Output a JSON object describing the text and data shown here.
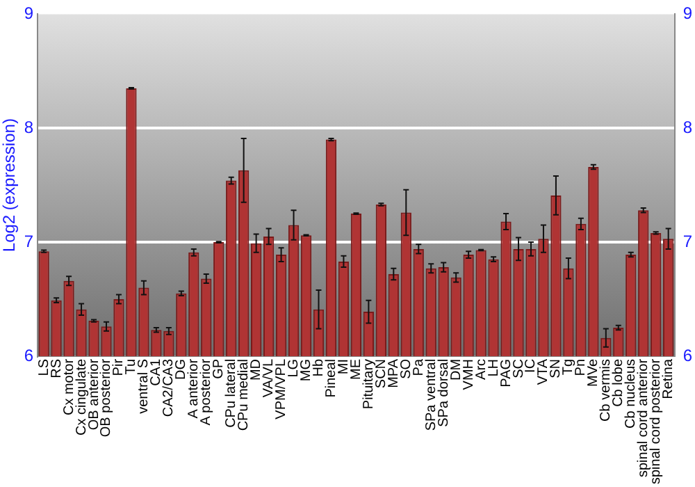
{
  "chart_data": {
    "type": "bar",
    "ylabel": "Log2 (expression)",
    "categories": [
      "LS",
      "RS",
      "Cx motor",
      "Cx cingulate",
      "OB anterior",
      "OB posterior",
      "Pir",
      "Tu",
      "ventral S",
      "CA1",
      "CA2/CA3",
      "DG",
      "A anterior",
      "A posterior",
      "GP",
      "CPu lateral",
      "CPu medial",
      "MD",
      "VA/VL",
      "VPM/VPL",
      "LG",
      "MG",
      "Hb",
      "Pineal",
      "MI",
      "ME",
      "Pituitary",
      "SCN",
      "MPA",
      "SO",
      "Pa",
      "SPa ventral",
      "SPa dorsal",
      "DM",
      "VMH",
      "Arc",
      "LH",
      "PAG",
      "SC",
      "IC",
      "VTA",
      "SN",
      "Tg",
      "Pn",
      "MVe",
      "Cb vermis",
      "Cb lobe",
      "Cb nucleus",
      "spinal cord anterior",
      "spinal cord posterior",
      "Retina"
    ],
    "values": [
      6.92,
      6.49,
      6.66,
      6.41,
      6.31,
      6.26,
      6.5,
      8.35,
      6.6,
      6.23,
      6.22,
      6.55,
      6.91,
      6.68,
      7.0,
      7.54,
      7.63,
      6.99,
      7.05,
      6.89,
      7.15,
      7.06,
      6.41,
      7.9,
      6.83,
      7.25,
      6.39,
      7.33,
      6.72,
      7.26,
      6.94,
      6.77,
      6.78,
      6.69,
      6.89,
      6.93,
      6.85,
      7.18,
      6.94,
      6.94,
      7.03,
      7.41,
      6.77,
      7.16,
      7.66,
      6.16,
      6.25,
      6.89,
      7.28,
      7.08,
      7.03
    ],
    "errors": [
      0.01,
      0.02,
      0.04,
      0.05,
      0.01,
      0.04,
      0.04,
      0.005,
      0.06,
      0.02,
      0.03,
      0.02,
      0.03,
      0.04,
      0.005,
      0.03,
      0.28,
      0.08,
      0.07,
      0.06,
      0.13,
      0.005,
      0.17,
      0.01,
      0.05,
      0.005,
      0.1,
      0.01,
      0.05,
      0.2,
      0.04,
      0.04,
      0.04,
      0.04,
      0.03,
      0.005,
      0.02,
      0.07,
      0.1,
      0.06,
      0.12,
      0.17,
      0.09,
      0.05,
      0.02,
      0.08,
      0.02,
      0.02,
      0.02,
      0.01,
      0.09
    ],
    "color": "#b03434",
    "ylim": [
      6,
      9
    ],
    "yticks": [
      6,
      7,
      8,
      9
    ],
    "y2lim": [
      6,
      9
    ],
    "y2ticks": [
      6,
      7,
      8,
      9
    ],
    "grid": "y",
    "legend": false
  }
}
